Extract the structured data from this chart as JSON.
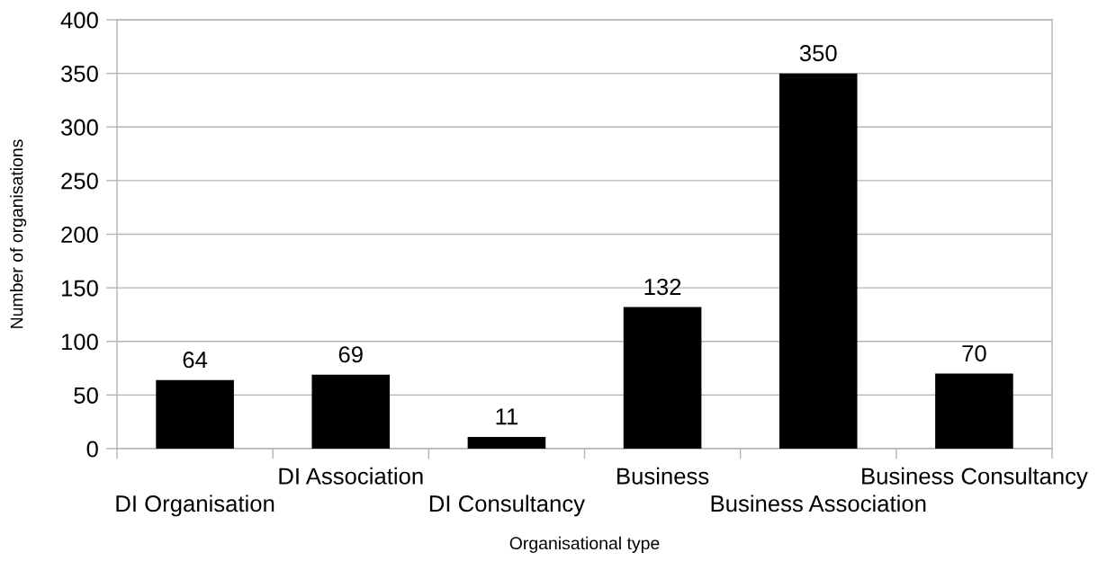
{
  "chart_data": {
    "type": "bar",
    "xlabel": "Organisational type",
    "ylabel": "Number of organisations",
    "categories": [
      "DI Organisation",
      "DI Association",
      "DI Consultancy",
      "Business",
      "Business Association",
      "Business Consultancy"
    ],
    "values": [
      64,
      69,
      11,
      132,
      350,
      70
    ],
    "color": "#000000",
    "ylim": [
      0,
      400
    ],
    "yticks": [
      0,
      50,
      100,
      150,
      200,
      250,
      300,
      350,
      400
    ],
    "grid": "y",
    "data_labels": true
  }
}
